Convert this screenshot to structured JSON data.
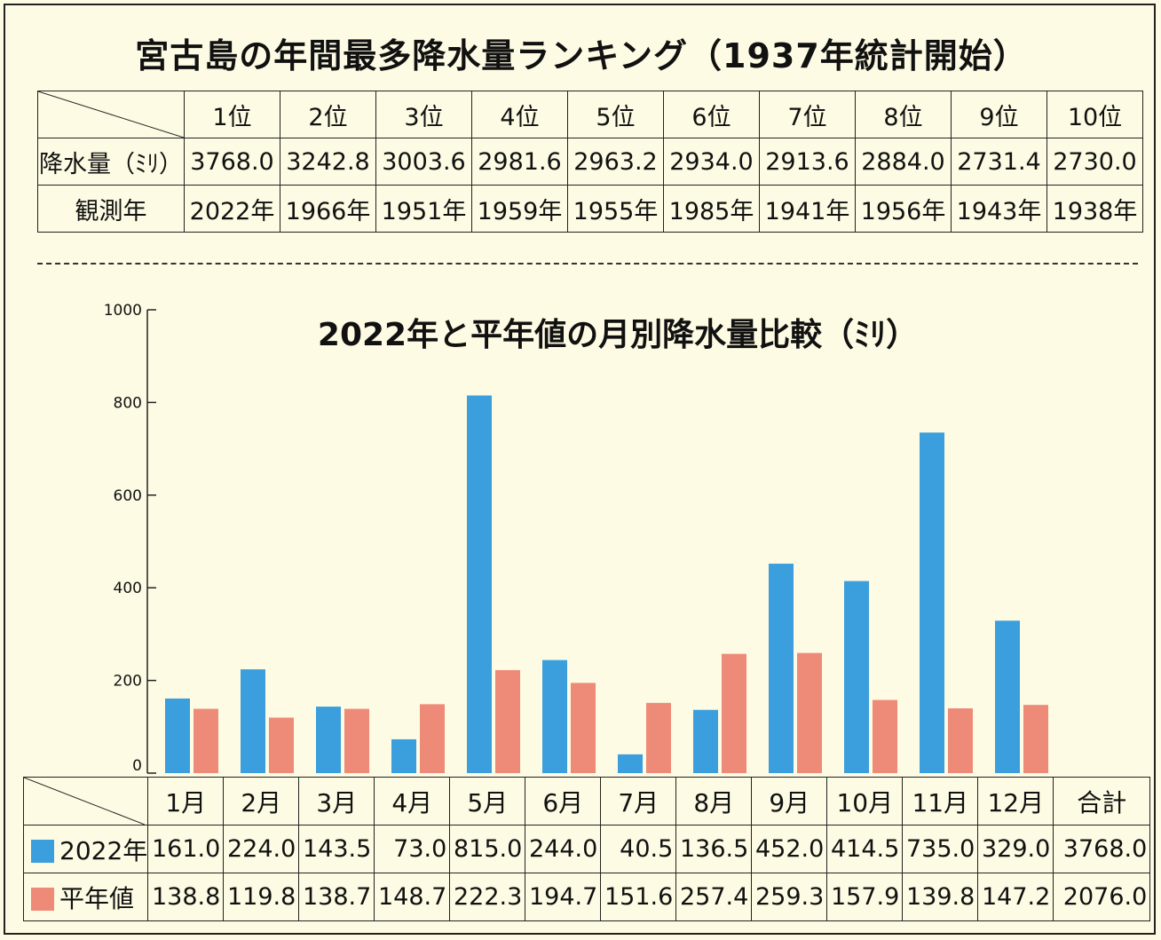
{
  "ranking": {
    "title": "宮古島の年間最多降水量ランキング（1937年統計開始）",
    "row_labels": {
      "amount": "降水量（ﾐﾘ）",
      "year": "観測年"
    },
    "ranks": [
      "1位",
      "2位",
      "3位",
      "4位",
      "5位",
      "6位",
      "7位",
      "8位",
      "9位",
      "10位"
    ],
    "amounts": [
      "3768.0",
      "3242.8",
      "3003.6",
      "2981.6",
      "2963.2",
      "2934.0",
      "2913.6",
      "2884.0",
      "2731.4",
      "2730.0"
    ],
    "years": [
      "2022年",
      "1966年",
      "1951年",
      "1959年",
      "1955年",
      "1985年",
      "1941年",
      "1956年",
      "1943年",
      "1938年"
    ]
  },
  "chart_data": {
    "type": "bar",
    "title": "2022年と平年値の月別降水量比較（ﾐﾘ）",
    "categories": [
      "1月",
      "2月",
      "3月",
      "4月",
      "5月",
      "6月",
      "7月",
      "8月",
      "9月",
      "10月",
      "11月",
      "12月"
    ],
    "series": [
      {
        "name": "2022年",
        "color": "#3a9fdc",
        "values": [
          161.0,
          224.0,
          143.5,
          73.0,
          815.0,
          244.0,
          40.5,
          136.5,
          452.0,
          414.5,
          735.0,
          329.0
        ],
        "labels": [
          "161.0",
          "224.0",
          "143.5",
          "73.0",
          "815.0",
          "244.0",
          "40.5",
          "136.5",
          "452.0",
          "414.5",
          "735.0",
          "329.0"
        ],
        "total": "3768.0"
      },
      {
        "name": "平年値",
        "color": "#ee8a78",
        "values": [
          138.8,
          119.8,
          138.7,
          148.7,
          222.3,
          194.7,
          151.6,
          257.4,
          259.3,
          157.9,
          139.8,
          147.2
        ],
        "labels": [
          "138.8",
          "119.8",
          "138.7",
          "148.7",
          "222.3",
          "194.7",
          "151.6",
          "257.4",
          "259.3",
          "157.9",
          "139.8",
          "147.2"
        ],
        "total": "2076.0"
      }
    ],
    "ylim": [
      0,
      1000
    ],
    "yticks": [
      0,
      200,
      400,
      600,
      800,
      1000
    ],
    "ytick_labels": [
      "0",
      "200",
      "400",
      "600",
      "800",
      "1000"
    ],
    "total_label": "合計",
    "grid": false
  }
}
